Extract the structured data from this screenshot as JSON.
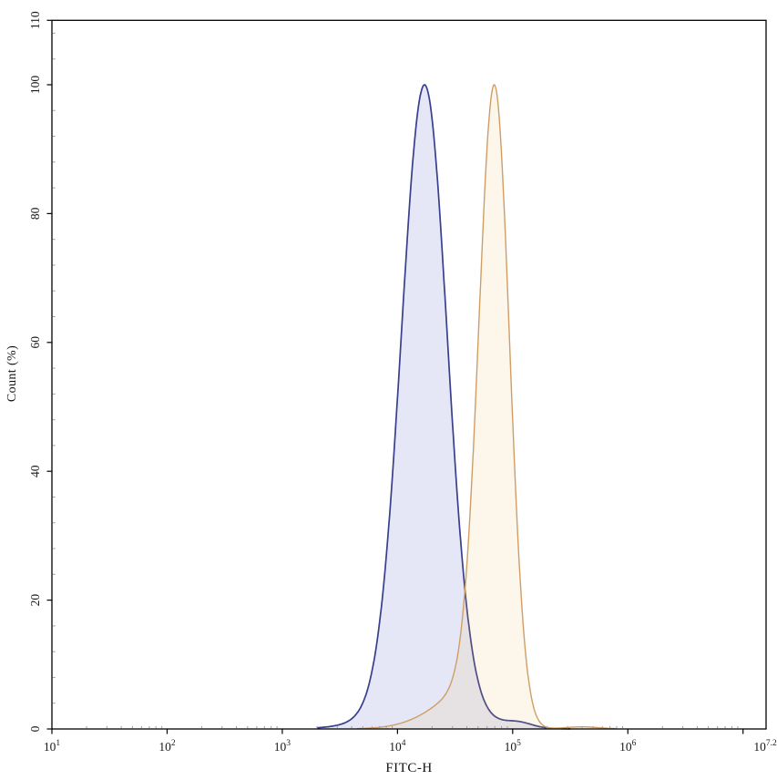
{
  "chart_data": {
    "type": "area",
    "subtype": "flow-cytometry-overlay-histogram",
    "title": "",
    "x_axis_label": "FITC-H",
    "y_axis_label": "Count (%)",
    "x_scale": "log10",
    "x_domain_log10": [
      1,
      7.2
    ],
    "x_labeled_exponents": [
      1,
      2,
      3,
      4,
      5,
      6
    ],
    "x_unlabeled_major_exponents": [
      7
    ],
    "x_edge_label_base": "10",
    "x_edge_label_exponent": "7.2",
    "x_minor_multiples": [
      2,
      3,
      4,
      5,
      6,
      7,
      8,
      9
    ],
    "y_domain": [
      0,
      110
    ],
    "y_major_ticks": [
      0,
      20,
      40,
      60,
      80,
      100,
      110
    ],
    "y_minor_step": 4,
    "grid": false,
    "legend": "none",
    "axis_color": "#000000",
    "minor_tick_color": "#a0a0a0",
    "series": [
      {
        "id": "blue-population",
        "stroke": "#383f8c",
        "fill": "rgba(95,104,205,0.16)",
        "stroke_width": 1.7,
        "peak_x": 17000,
        "peak_y_pct": 100,
        "draw_range_log10": [
          3.3,
          5.5
        ],
        "components": [
          {
            "center_log10": 4.235,
            "height": 100,
            "sigma_left": 0.2,
            "sigma_right": 0.195
          },
          {
            "center_log10": 4.24,
            "height": 4,
            "sigma_left": 0.38,
            "sigma_right": 0.38
          },
          {
            "center_log10": 5.05,
            "height": 0.8,
            "sigma_left": 0.12,
            "sigma_right": 0.12
          }
        ]
      },
      {
        "id": "orange-population",
        "stroke": "#cf9e66",
        "fill": "rgba(242,186,96,0.13)",
        "stroke_width": 1.4,
        "peak_x": 70000,
        "peak_y_pct": 100,
        "draw_range_log10": [
          3.65,
          5.9
        ],
        "components": [
          {
            "center_log10": 4.845,
            "height": 100,
            "sigma_left": 0.135,
            "sigma_right": 0.13
          },
          {
            "center_log10": 4.75,
            "height": 8,
            "sigma_left": 0.35,
            "sigma_right": 0.15
          },
          {
            "center_log10": 5.6,
            "height": 0.35,
            "sigma_left": 0.15,
            "sigma_right": 0.15
          }
        ]
      }
    ]
  }
}
